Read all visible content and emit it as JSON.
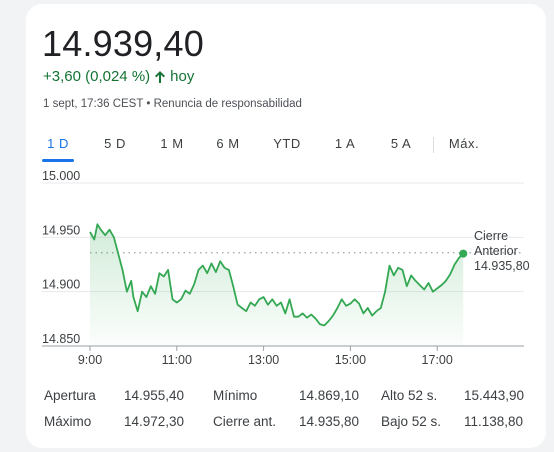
{
  "quote": {
    "price": "14.939,40",
    "change": "+3,60 (0,024 %)",
    "change_period": "hoy",
    "timestamp": "1 sept, 17:36 CEST",
    "separator": "•",
    "disclaimer": "Renuncia de responsabilidad"
  },
  "colors": {
    "positive": "#137333",
    "line": "#34a853",
    "active_tab": "#1a73e8"
  },
  "tabs": [
    {
      "label": "1 D",
      "active": true
    },
    {
      "label": "5 D",
      "active": false
    },
    {
      "label": "1 M",
      "active": false
    },
    {
      "label": "6 M",
      "active": false
    },
    {
      "label": "YTD",
      "active": false
    },
    {
      "label": "1 A",
      "active": false
    },
    {
      "label": "5 A",
      "active": false
    },
    {
      "label": "Máx.",
      "active": false
    }
  ],
  "chart_data": {
    "type": "area",
    "title": "",
    "xlabel": "",
    "ylabel": "",
    "y_ticks": [
      "15.000",
      "14.950",
      "14.900",
      "14.850"
    ],
    "y_tick_values": [
      15000,
      14950,
      14900,
      14850
    ],
    "x_ticks": [
      "9:00",
      "11:00",
      "13:00",
      "15:00",
      "17:00"
    ],
    "x_tick_values": [
      9,
      11,
      13,
      15,
      17
    ],
    "ylim": [
      14850,
      15000
    ],
    "xlim": [
      9,
      19
    ],
    "grid": true,
    "reference_line": {
      "value": 14935.8,
      "label_lines": [
        "Cierre",
        "Anterior",
        "14.935,80"
      ]
    },
    "series": [
      {
        "x": [
          9.0,
          9.1,
          9.17,
          9.25,
          9.35,
          9.45,
          9.55,
          9.65,
          9.75,
          9.85,
          9.95,
          10.0,
          10.1,
          10.2,
          10.3,
          10.4,
          10.5,
          10.6,
          10.7,
          10.8,
          10.9,
          11.0,
          11.1,
          11.2,
          11.3,
          11.4,
          11.5,
          11.6,
          11.7,
          11.8,
          11.9,
          12.0,
          12.1,
          12.2,
          12.3,
          12.4,
          12.5,
          12.6,
          12.7,
          12.8,
          12.9,
          13.0,
          13.1,
          13.2,
          13.3,
          13.4,
          13.5,
          13.6,
          13.7,
          13.8,
          13.9,
          14.0,
          14.1,
          14.2,
          14.3,
          14.4,
          14.5,
          14.6,
          14.7,
          14.8,
          14.9,
          15.0,
          15.1,
          15.2,
          15.3,
          15.4,
          15.5,
          15.6,
          15.7,
          15.8,
          15.9,
          16.0,
          16.1,
          16.2,
          16.3,
          16.4,
          16.5,
          16.6,
          16.7,
          16.8,
          16.9,
          17.0,
          17.1,
          17.2,
          17.3,
          17.4,
          17.5,
          17.6
        ],
        "y": [
          14955,
          14948,
          14962,
          14957,
          14952,
          14957,
          14950,
          14935,
          14920,
          14900,
          14910,
          14895,
          14882,
          14900,
          14895,
          14905,
          14898,
          14917,
          14914,
          14920,
          14893,
          14890,
          14893,
          14901,
          14898,
          14907,
          14920,
          14924,
          14917,
          14926,
          14918,
          14928,
          14922,
          14920,
          14905,
          14888,
          14885,
          14882,
          14890,
          14887,
          14893,
          14895,
          14888,
          14893,
          14887,
          14890,
          14880,
          14893,
          14877,
          14877,
          14880,
          14876,
          14879,
          14875,
          14870,
          14869,
          14873,
          14878,
          14885,
          14893,
          14887,
          14889,
          14893,
          14889,
          14880,
          14885,
          14878,
          14882,
          14885,
          14900,
          14924,
          14915,
          14922,
          14920,
          14905,
          14915,
          14910,
          14906,
          14902,
          14908,
          14900,
          14903,
          14906,
          14910,
          14916,
          14925,
          14931,
          14935
        ]
      }
    ]
  },
  "stats": [
    [
      {
        "label": "Apertura",
        "value": "14.955,40"
      },
      {
        "label": "Mínimo",
        "value": "14.869,10"
      },
      {
        "label": "Alto 52 s.",
        "value": "15.443,90"
      }
    ],
    [
      {
        "label": "Máximo",
        "value": "14.972,30"
      },
      {
        "label": "Cierre ant.",
        "value": "14.935,80"
      },
      {
        "label": "Bajo 52 s.",
        "value": "11.138,80"
      }
    ]
  ]
}
